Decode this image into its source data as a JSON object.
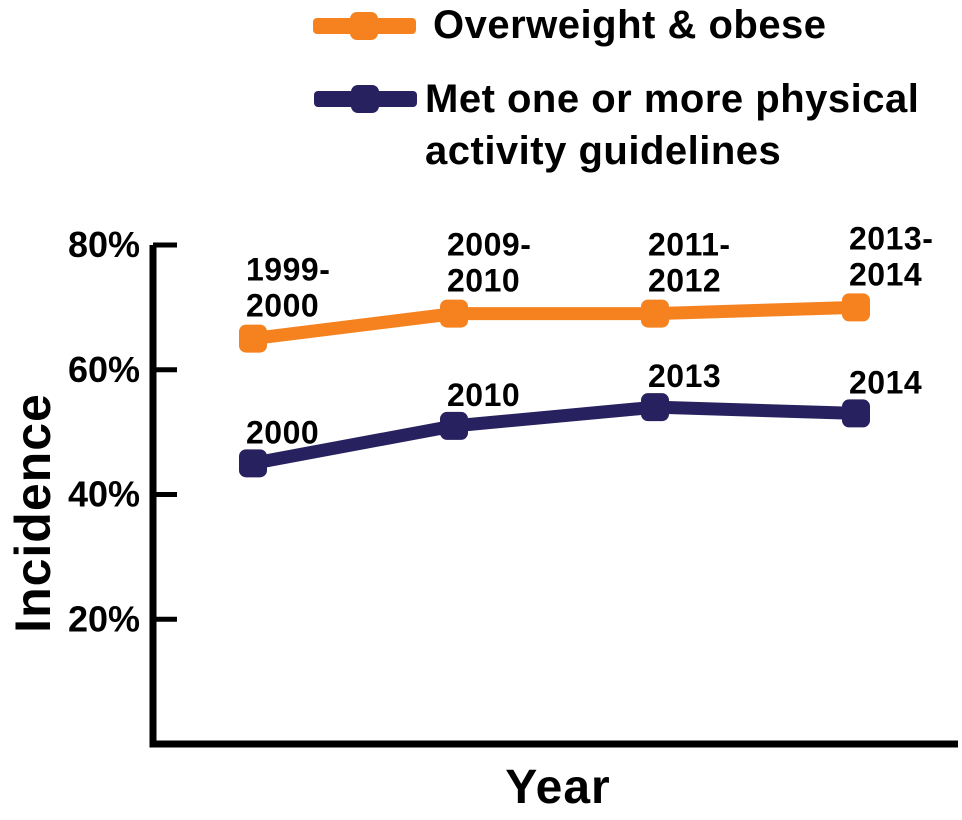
{
  "chart_data": {
    "type": "line",
    "title": "",
    "xlabel": "Year",
    "ylabel": "Incidence",
    "categories": [
      "1999-2000",
      "2009-2010",
      "2011-2012",
      "2013-2014"
    ],
    "y_ticks": [
      "80%",
      "60%",
      "40%",
      "20%"
    ],
    "y_tick_values": [
      80,
      60,
      40,
      20
    ],
    "ylim": [
      0,
      80
    ],
    "grid": false,
    "legend_position": "top",
    "series": [
      {
        "name": "Overweight & obese",
        "legend_lines": [
          "Overweight & obese"
        ],
        "color": "#F5821F",
        "values": [
          65,
          69,
          69,
          70
        ],
        "point_labels": [
          [
            "1999-",
            "2000"
          ],
          [
            "2009-",
            "2010"
          ],
          [
            "2011-",
            "2012"
          ],
          [
            "2013-",
            "2014"
          ]
        ]
      },
      {
        "name": "Met one or more physical activity guidelines",
        "legend_lines": [
          "Met one or more physical",
          "activity guidelines"
        ],
        "color": "#28215F",
        "values": [
          45,
          51,
          54,
          53
        ],
        "point_labels": [
          [
            "2000"
          ],
          [
            "2010"
          ],
          [
            "2013"
          ],
          [
            "2014"
          ]
        ]
      }
    ]
  }
}
